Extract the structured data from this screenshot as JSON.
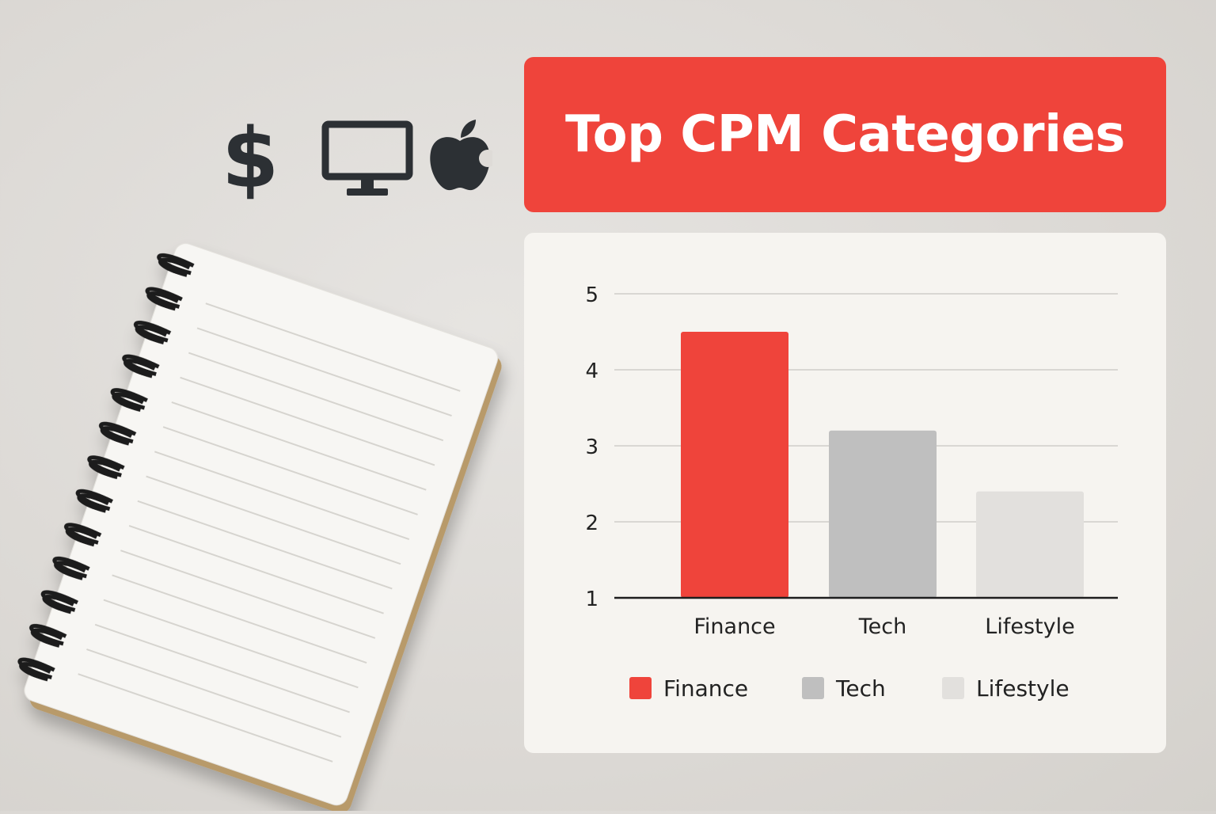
{
  "header_icons": [
    {
      "name": "dollar-sign-icon",
      "glyph": "$"
    },
    {
      "name": "monitor-icon"
    },
    {
      "name": "apple-logo-icon"
    }
  ],
  "title": "Top CPM Categories",
  "colors": {
    "accent": "#ef443b",
    "finance": "#ef443b",
    "tech": "#bfbfbf",
    "lifestyle": "#e2e0dd",
    "icon": "#2c3034"
  },
  "chart_data": {
    "type": "bar",
    "categories": [
      "Finance",
      "Tech",
      "Lifestyle"
    ],
    "values": [
      4.5,
      3.2,
      2.4
    ],
    "colors": [
      "#ef443b",
      "#bfbfbf",
      "#e2e0dd"
    ],
    "y_ticks": [
      "1",
      "2",
      "3",
      "4",
      "5"
    ],
    "ylim": [
      1,
      5
    ],
    "grid": true,
    "legend": {
      "placement": "bottom",
      "entries": [
        "Finance",
        "Tech",
        "Lifestyle"
      ]
    }
  }
}
